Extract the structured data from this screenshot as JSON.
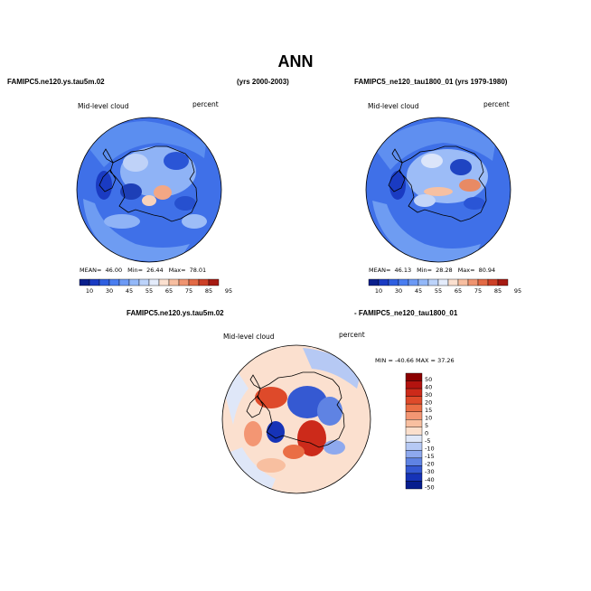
{
  "figure": {
    "title": "ANN"
  },
  "panels": [
    {
      "case_label": "FAMIPC5.ne120.ys.tau5m.02",
      "years_label": "(yrs 2000-2003)",
      "variable": "Mid-level cloud",
      "units": "percent",
      "stats": {
        "mean_label": "MEAN=",
        "mean": "46.00",
        "min_label": "Min=",
        "min": "26.44",
        "max_label": "Max=",
        "max": "78.01"
      },
      "colorbar_ticks": [
        "10",
        "30",
        "45",
        "55",
        "65",
        "75",
        "85",
        "95"
      ]
    },
    {
      "case_label": "FAMIPC5_ne120_tau1800_01 (yrs 1979-1980)",
      "variable": "Mid-level cloud",
      "units": "percent",
      "stats": {
        "mean_label": "MEAN=",
        "mean": "46.13",
        "min_label": "Min=",
        "min": "28.28",
        "max_label": "Max=",
        "max": "80.94"
      },
      "colorbar_ticks": [
        "10",
        "30",
        "45",
        "55",
        "65",
        "75",
        "85",
        "95"
      ]
    }
  ],
  "difference": {
    "label_left": "FAMIPC5.ne120.ys.tau5m.02",
    "label_right": "- FAMIPC5_ne120_tau1800_01",
    "variable": "Mid-level cloud",
    "units": "percent",
    "stats_text": "MIN = -40.66 MAX =  37.26",
    "colorbar_ticks": [
      "50",
      "40",
      "30",
      "20",
      "15",
      "10",
      "5",
      "0",
      "-5",
      "-10",
      "-15",
      "-20",
      "-30",
      "-40",
      "-50"
    ]
  },
  "colors": {
    "abs_scale": [
      "#0a1f8c",
      "#1a3bc2",
      "#2f5fe0",
      "#4a7ef0",
      "#6c9af5",
      "#93b8f8",
      "#bcd3fa",
      "#e4ecfb",
      "#fbe0cf",
      "#f7bea0",
      "#ef9470",
      "#e26a45",
      "#cc4027",
      "#a61a12"
    ],
    "diff_scale": [
      "#8b0000",
      "#b3130f",
      "#cc2a1a",
      "#de4a2a",
      "#ea6e45",
      "#f39673",
      "#f8bfa0",
      "#fbdfcc",
      "#dfe7f8",
      "#b6c9f4",
      "#8ea9ee",
      "#5f83e3",
      "#3559d2",
      "#1633b7",
      "#061d8e"
    ]
  }
}
